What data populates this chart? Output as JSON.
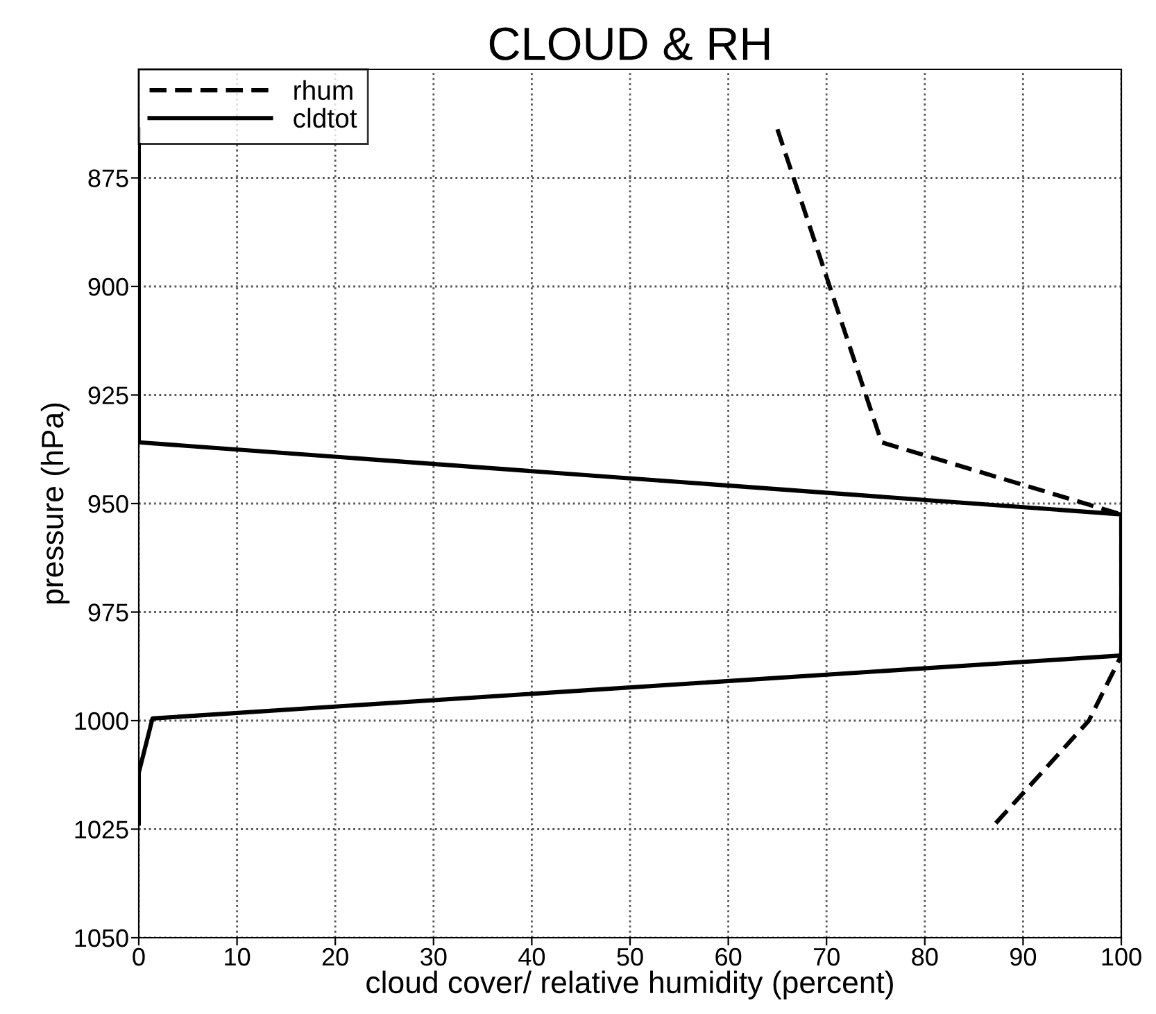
{
  "chart_data": {
    "type": "line",
    "title": "CLOUD & RH",
    "xlabel": "cloud cover/ relative humidity (percent)",
    "ylabel": "pressure (hPa)",
    "series": [
      {
        "name": "rhum",
        "color": "#000000",
        "line_style": "dashed",
        "x": [
          65,
          75.6,
          100,
          100,
          96.7,
          87.2
        ],
        "values": [
          863.8,
          935.9,
          952.5,
          985,
          1000,
          1023.7
        ]
      },
      {
        "name": "cldtot",
        "color": "#000000",
        "line_style": "solid",
        "x": [
          0,
          0,
          100,
          100,
          1.4,
          0,
          0
        ],
        "values": [
          863.8,
          935.9,
          952.5,
          985,
          999.5,
          1012,
          1023.7
        ]
      }
    ],
    "xlim": [
      0,
      100
    ],
    "xticks": [
      0,
      10,
      20,
      30,
      40,
      50,
      60,
      70,
      80,
      90,
      100
    ],
    "ylim": [
      1050,
      850
    ],
    "yticks": [
      875,
      900,
      925,
      950,
      975,
      1000,
      1025,
      1050
    ],
    "grid": true,
    "legend": "top left",
    "marker": "none"
  }
}
